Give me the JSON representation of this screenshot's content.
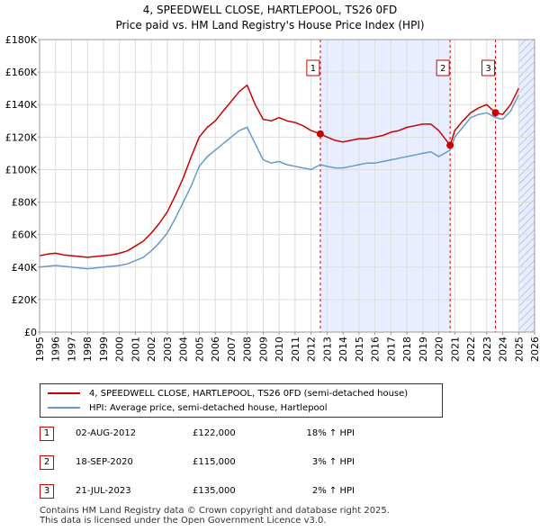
{
  "title": {
    "line1": "4, SPEEDWELL CLOSE, HARTLEPOOL, TS26 0FD",
    "line2": "Price paid vs. HM Land Registry's House Price Index (HPI)"
  },
  "legend": {
    "property_label": "4, SPEEDWELL CLOSE, HARTLEPOOL, TS26 0FD (semi-detached house)",
    "hpi_label": "HPI: Average price, semi-detached house, Hartlepool"
  },
  "transactions": [
    {
      "num": "1",
      "date": "02-AUG-2012",
      "price": "£122,000",
      "hpi": "18% ↑ HPI"
    },
    {
      "num": "2",
      "date": "18-SEP-2020",
      "price": "£115,000",
      "hpi": "3% ↑ HPI"
    },
    {
      "num": "3",
      "date": "21-JUL-2023",
      "price": "£135,000",
      "hpi": "2% ↑ HPI"
    }
  ],
  "footer": {
    "line1": "Contains HM Land Registry data © Crown copyright and database right 2025.",
    "line2": "This data is licensed under the Open Government Licence v3.0."
  },
  "colors": {
    "property": "#cc0000",
    "hpi": "#6699cc",
    "shade": "#e8eeff",
    "hatch": "#b0b8d8"
  },
  "chart_data": {
    "type": "line",
    "xlim": [
      1995,
      2026
    ],
    "ylim": [
      0,
      180000
    ],
    "x_ticks": [
      "1995",
      "1996",
      "1997",
      "1998",
      "1999",
      "2000",
      "2001",
      "2002",
      "2003",
      "2004",
      "2005",
      "2006",
      "2007",
      "2008",
      "2009",
      "2010",
      "2011",
      "2012",
      "2013",
      "2014",
      "2015",
      "2016",
      "2017",
      "2018",
      "2019",
      "2020",
      "2021",
      "2022",
      "2023",
      "2024",
      "2025",
      "2026"
    ],
    "y_ticks": [
      {
        "value": 0,
        "label": "£0"
      },
      {
        "value": 20000,
        "label": "£20K"
      },
      {
        "value": 40000,
        "label": "£40K"
      },
      {
        "value": 60000,
        "label": "£60K"
      },
      {
        "value": 80000,
        "label": "£80K"
      },
      {
        "value": 100000,
        "label": "£100K"
      },
      {
        "value": 120000,
        "label": "£120K"
      },
      {
        "value": 140000,
        "label": "£140K"
      },
      {
        "value": 160000,
        "label": "£160K"
      },
      {
        "value": 180000,
        "label": "£180K"
      }
    ],
    "shaded_period": [
      2012.58,
      2020.71
    ],
    "future_hatch_from": 2025.0,
    "sale_markers": [
      {
        "label": "1",
        "x": 2012.58,
        "y": 122000
      },
      {
        "label": "2",
        "x": 2020.71,
        "y": 115000
      },
      {
        "label": "3",
        "x": 2023.55,
        "y": 135000
      }
    ],
    "series": [
      {
        "name": "4, SPEEDWELL CLOSE, HARTLEPOOL, TS26 0FD (semi-detached house)",
        "color": "#cc0000",
        "x": [
          1995,
          1995.5,
          1996,
          1996.5,
          1997,
          1997.5,
          1998,
          1998.5,
          1999,
          1999.5,
          2000,
          2000.5,
          2001,
          2001.5,
          2002,
          2002.5,
          2003,
          2003.5,
          2004,
          2004.5,
          2005,
          2005.5,
          2006,
          2006.5,
          2007,
          2007.5,
          2008,
          2008.5,
          2009,
          2009.5,
          2010,
          2010.5,
          2011,
          2011.5,
          2012,
          2012.58,
          2013,
          2013.5,
          2014,
          2014.5,
          2015,
          2015.5,
          2016,
          2016.5,
          2017,
          2017.5,
          2018,
          2018.5,
          2019,
          2019.5,
          2020,
          2020.71,
          2021,
          2021.5,
          2022,
          2022.5,
          2023,
          2023.55,
          2024,
          2024.5,
          2025
        ],
        "values": [
          47000,
          48000,
          48500,
          47500,
          47000,
          46500,
          46000,
          46500,
          47000,
          47500,
          48500,
          50000,
          53000,
          56000,
          61000,
          67000,
          74000,
          84000,
          95000,
          108000,
          120000,
          126000,
          130000,
          136000,
          142000,
          148000,
          152000,
          140000,
          131000,
          130000,
          132000,
          130000,
          129000,
          127000,
          124000,
          122000,
          120000,
          118000,
          117000,
          118000,
          119000,
          119000,
          120000,
          121000,
          123000,
          124000,
          126000,
          127000,
          128000,
          128000,
          124000,
          115000,
          124000,
          130000,
          135000,
          138000,
          140000,
          135000,
          134000,
          140000,
          150000
        ]
      },
      {
        "name": "HPI: Average price, semi-detached house, Hartlepool",
        "color": "#6699cc",
        "x": [
          1995,
          1995.5,
          1996,
          1996.5,
          1997,
          1997.5,
          1998,
          1998.5,
          1999,
          1999.5,
          2000,
          2000.5,
          2001,
          2001.5,
          2002,
          2002.5,
          2003,
          2003.5,
          2004,
          2004.5,
          2005,
          2005.5,
          2006,
          2006.5,
          2007,
          2007.5,
          2008,
          2008.5,
          2009,
          2009.5,
          2010,
          2010.5,
          2011,
          2011.5,
          2012,
          2012.58,
          2013,
          2013.5,
          2014,
          2014.5,
          2015,
          2015.5,
          2016,
          2016.5,
          2017,
          2017.5,
          2018,
          2018.5,
          2019,
          2019.5,
          2020,
          2020.71,
          2021,
          2021.5,
          2022,
          2022.5,
          2023,
          2023.55,
          2024,
          2024.5,
          2025
        ],
        "values": [
          40000,
          40500,
          41000,
          40500,
          40000,
          39500,
          39000,
          39500,
          40000,
          40500,
          41000,
          42000,
          44000,
          46000,
          50000,
          55000,
          61000,
          70000,
          80000,
          90000,
          102000,
          108000,
          112000,
          116000,
          120000,
          124000,
          126000,
          116000,
          106000,
          104000,
          105000,
          103000,
          102000,
          101000,
          100000,
          103000,
          102000,
          101000,
          101000,
          102000,
          103000,
          104000,
          104000,
          105000,
          106000,
          107000,
          108000,
          109000,
          110000,
          111000,
          108000,
          112000,
          120000,
          126000,
          132000,
          134000,
          135000,
          132000,
          131000,
          136000,
          146000
        ]
      }
    ]
  }
}
